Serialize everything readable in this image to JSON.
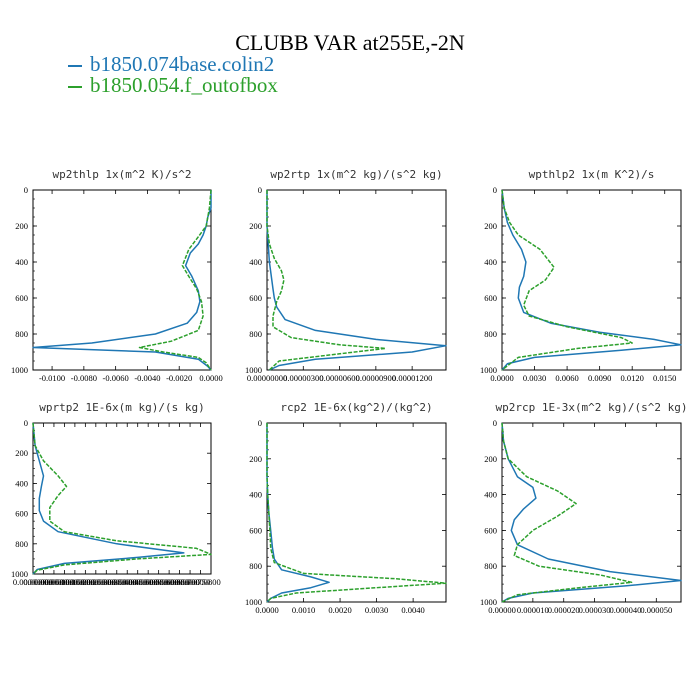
{
  "page": {
    "title": "CLUBB VAR at255E,-2N",
    "legend": [
      {
        "label": "b1850.074base.colin2",
        "color": "#1f77b4"
      },
      {
        "label": "b1850.054.f_outofbox",
        "color": "#2ca02c"
      }
    ]
  },
  "chart_data": [
    {
      "type": "line",
      "title": "wp2thlp  1x(m^2 K)/s^2",
      "xlim": [
        -0.0112,
        0.0
      ],
      "ylim": [
        1000,
        0
      ],
      "xticks": [
        -0.01,
        -0.008,
        -0.006,
        -0.004,
        -0.002,
        0.0
      ],
      "xtick_labels": [
        "-0.0100",
        "-0.0080",
        "-0.0060",
        "-0.0040",
        "-0.0020",
        "0.0000"
      ],
      "yticks": [
        0,
        200,
        400,
        600,
        800,
        1000
      ],
      "ytick_labels": [
        "0",
        "200",
        "400",
        "600",
        "800",
        "1000"
      ],
      "series": [
        {
          "name": "b1850.074base.colin2",
          "color": "#1f77b4",
          "dash": false,
          "x": [
            0.0,
            0.0,
            -0.0002,
            -0.0003,
            -0.0005,
            -0.0008,
            -0.0013,
            -0.0016,
            -0.0012,
            -0.0008,
            -0.0007,
            -0.0009,
            -0.0015,
            -0.0035,
            -0.0075,
            -0.0112,
            -0.0035,
            -0.0008,
            -0.0002,
            0.0
          ],
          "y": [
            0,
            100,
            150,
            200,
            250,
            300,
            350,
            420,
            480,
            560,
            620,
            680,
            740,
            800,
            850,
            875,
            900,
            940,
            980,
            1000
          ]
        },
        {
          "name": "b1850.054.f_outofbox",
          "color": "#2ca02c",
          "dash": true,
          "x": [
            0.0,
            -0.0001,
            -0.0002,
            -0.0003,
            -0.0008,
            -0.0014,
            -0.0018,
            -0.0014,
            -0.0009,
            -0.0006,
            -0.0005,
            -0.0008,
            -0.0025,
            -0.0045,
            -0.003,
            -0.0008,
            -0.0003,
            0.0
          ],
          "y": [
            0,
            100,
            150,
            200,
            260,
            330,
            420,
            480,
            550,
            620,
            700,
            780,
            840,
            875,
            900,
            930,
            960,
            1000
          ]
        }
      ]
    },
    {
      "type": "line",
      "title": "wp2rtp  1x(m^2 kg)/(s^2 kg)",
      "xlim": [
        0.0,
        1.48e-05
      ],
      "ylim": [
        1000,
        0
      ],
      "xticks": [
        0.0,
        3e-06,
        6e-06,
        9e-06,
        1.2e-05
      ],
      "xtick_labels": [
        "0.00000000",
        "0.00000300",
        "0.00000600",
        "0.00000900",
        "0.00001200"
      ],
      "yticks": [
        0,
        200,
        400,
        600,
        800,
        1000
      ],
      "ytick_labels": [
        "0",
        "200",
        "400",
        "600",
        "800",
        "1000"
      ],
      "series": [
        {
          "name": "b1850.074base.colin2",
          "color": "#1f77b4",
          "dash": false,
          "x": [
            0.0,
            0.0,
            1e-07,
            2e-07,
            3e-07,
            4e-07,
            5e-07,
            6e-07,
            8e-07,
            1.5e-06,
            4e-06,
            9e-06,
            1.48e-05,
            1.2e-05,
            4e-06,
            1e-06,
            2e-07
          ],
          "y": [
            0,
            200,
            300,
            400,
            450,
            500,
            550,
            600,
            650,
            720,
            780,
            830,
            865,
            900,
            940,
            975,
            1000
          ]
        },
        {
          "name": "b1850.054.f_outofbox",
          "color": "#2ca02c",
          "dash": true,
          "x": [
            0.0,
            0.0,
            2e-07,
            6e-07,
            1.2e-06,
            1.4e-06,
            1.2e-06,
            8e-07,
            5e-07,
            5e-07,
            2e-06,
            6e-06,
            9.8e-06,
            6e-06,
            1e-06,
            2e-07
          ],
          "y": [
            0,
            200,
            300,
            380,
            450,
            500,
            560,
            620,
            700,
            760,
            820,
            860,
            880,
            910,
            950,
            1000
          ]
        }
      ]
    },
    {
      "type": "line",
      "title": "wpthlp2  1x(m K^2)/s",
      "xlim": [
        0.0,
        0.0165
      ],
      "ylim": [
        1000,
        0
      ],
      "xticks": [
        0.0,
        0.003,
        0.006,
        0.009,
        0.012,
        0.015
      ],
      "xtick_labels": [
        "0.0000",
        "0.0030",
        "0.0060",
        "0.0090",
        "0.0120",
        "0.0150"
      ],
      "yticks": [
        0,
        200,
        400,
        600,
        800,
        1000
      ],
      "ytick_labels": [
        "0",
        "200",
        "400",
        "600",
        "800",
        "1000"
      ],
      "series": [
        {
          "name": "b1850.074base.colin2",
          "color": "#1f77b4",
          "dash": false,
          "x": [
            0.0,
            0.0002,
            0.0005,
            0.001,
            0.0018,
            0.0022,
            0.002,
            0.0016,
            0.0015,
            0.002,
            0.0045,
            0.009,
            0.014,
            0.0165,
            0.011,
            0.003,
            0.0005,
            0.0
          ],
          "y": [
            0,
            100,
            180,
            250,
            330,
            400,
            480,
            540,
            600,
            680,
            740,
            790,
            830,
            860,
            890,
            930,
            965,
            1000
          ]
        },
        {
          "name": "b1850.054.f_outofbox",
          "color": "#2ca02c",
          "dash": true,
          "x": [
            0.0,
            0.0002,
            0.0007,
            0.0015,
            0.0035,
            0.0048,
            0.004,
            0.0025,
            0.002,
            0.0025,
            0.006,
            0.011,
            0.012,
            0.007,
            0.0015,
            0.0
          ],
          "y": [
            0,
            100,
            180,
            250,
            330,
            430,
            500,
            560,
            640,
            700,
            760,
            820,
            850,
            880,
            930,
            1000
          ]
        }
      ]
    },
    {
      "type": "line",
      "title": "wprtp2  1E-6x(m kg)/(s kg)",
      "xlim": [
        0.0,
        8.5e-06
      ],
      "ylim": [
        1000,
        0
      ],
      "xticks": [
        0.0,
        5e-07,
        1e-06,
        1.5e-06,
        2e-06,
        2.5e-06,
        3e-06,
        3.5e-06,
        4e-06,
        4.5e-06,
        5e-06,
        5.5e-06,
        6e-06,
        6.5e-06,
        7e-06,
        7.5e-06,
        8e-06
      ],
      "xtick_labels": [
        "0.00000000",
        "0.00000050",
        "0.00000100",
        "0.00000150",
        "0.00000200",
        "0.00000250",
        "0.00000300",
        "0.00000350",
        "0.00000400",
        "0.00000450",
        "0.00000500",
        "0.00000550",
        "0.00000600",
        "0.00000650",
        "0.00000700",
        "0.00000750",
        "0.00000800"
      ],
      "yticks": [
        0,
        200,
        400,
        600,
        800,
        1000
      ],
      "ytick_labels": [
        "0",
        "200",
        "400",
        "600",
        "800",
        "1000"
      ],
      "series": [
        {
          "name": "b1850.074base.colin2",
          "color": "#1f77b4",
          "dash": false,
          "x": [
            0.0,
            1e-07,
            3e-07,
            5e-07,
            4e-07,
            3e-07,
            3e-07,
            5e-07,
            1.2e-06,
            4e-06,
            7.2e-06,
            5e-06,
            1.5e-06,
            2e-07,
            0.0
          ],
          "y": [
            0,
            150,
            250,
            350,
            420,
            500,
            580,
            650,
            720,
            800,
            860,
            890,
            930,
            970,
            1000
          ]
        },
        {
          "name": "b1850.054.f_outofbox",
          "color": "#2ca02c",
          "dash": true,
          "x": [
            0.0,
            1e-07,
            5e-07,
            1.2e-06,
            1.6e-06,
            1.2e-06,
            8e-07,
            8e-07,
            1.5e-06,
            4e-06,
            7.8e-06,
            8.5e-06,
            5e-06,
            1.5e-06,
            2e-07,
            0.0
          ],
          "y": [
            0,
            150,
            250,
            350,
            420,
            480,
            560,
            650,
            720,
            780,
            830,
            870,
            900,
            940,
            975,
            1000
          ]
        }
      ]
    },
    {
      "type": "line",
      "title": "rcp2  1E-6x(kg^2)/(kg^2)",
      "xlim": [
        0.0,
        0.0049
      ],
      "ylim": [
        1000,
        0
      ],
      "xticks": [
        0.0,
        0.001,
        0.002,
        0.003,
        0.004
      ],
      "xtick_labels": [
        "0.0000",
        "0.0010",
        "0.0020",
        "0.0030",
        "0.0040"
      ],
      "yticks": [
        0,
        200,
        400,
        600,
        800,
        1000
      ],
      "ytick_labels": [
        "0",
        "200",
        "400",
        "600",
        "800",
        "1000"
      ],
      "series": [
        {
          "name": "b1850.074base.colin2",
          "color": "#1f77b4",
          "dash": false,
          "x": [
            0.0,
            0.0,
            2e-05,
            5e-05,
            0.0001,
            0.00015,
            0.0002,
            0.0004,
            0.0012,
            0.0017,
            0.0012,
            0.0004,
            0.0001,
            0.0
          ],
          "y": [
            0,
            300,
            400,
            500,
            600,
            700,
            760,
            820,
            860,
            890,
            920,
            950,
            980,
            1000
          ]
        },
        {
          "name": "b1850.054.f_outofbox",
          "color": "#2ca02c",
          "dash": true,
          "x": [
            0.0,
            0.0,
            2e-05,
            5e-05,
            8e-05,
            0.0001,
            0.0002,
            0.001,
            0.0035,
            0.0049,
            0.003,
            0.0008,
            0.0001,
            0.0
          ],
          "y": [
            0,
            300,
            400,
            500,
            600,
            700,
            780,
            840,
            870,
            895,
            920,
            950,
            980,
            1000
          ]
        }
      ]
    },
    {
      "type": "line",
      "title": "wp2rcp  1E-3x(m^2 kg)/(s^2 kg)",
      "xlim": [
        0.0,
        5.8e-05
      ],
      "ylim": [
        1000,
        0
      ],
      "xticks": [
        0.0,
        1e-05,
        2e-05,
        3e-05,
        4e-05,
        5e-05
      ],
      "xtick_labels": [
        "0.00000",
        "0.000010",
        "0.000020",
        "0.000030",
        "0.000040",
        "0.000050"
      ],
      "yticks": [
        0,
        200,
        400,
        600,
        800,
        1000
      ],
      "ytick_labels": [
        "0",
        "200",
        "400",
        "600",
        "800",
        "1000"
      ],
      "series": [
        {
          "name": "b1850.074base.colin2",
          "color": "#1f77b4",
          "dash": false,
          "x": [
            0.0,
            5e-07,
            2e-06,
            5e-06,
            1e-05,
            1.1e-05,
            7e-06,
            4e-06,
            3e-06,
            5e-06,
            1.5e-05,
            3.5e-05,
            5.8e-05,
            4e-05,
            1e-05,
            2e-06,
            0.0
          ],
          "y": [
            0,
            100,
            200,
            300,
            360,
            420,
            480,
            540,
            600,
            680,
            760,
            830,
            880,
            910,
            950,
            980,
            1000
          ]
        },
        {
          "name": "b1850.054.f_outofbox",
          "color": "#2ca02c",
          "dash": true,
          "x": [
            0.0,
            5e-07,
            2e-06,
            8e-06,
            1.8e-05,
            2.4e-05,
            1.8e-05,
            1e-05,
            5e-06,
            4e-06,
            1.2e-05,
            3.2e-05,
            4.2e-05,
            2.5e-05,
            5e-06,
            0.0
          ],
          "y": [
            0,
            100,
            200,
            300,
            380,
            450,
            520,
            600,
            680,
            740,
            800,
            850,
            890,
            920,
            960,
            1000
          ]
        }
      ]
    }
  ]
}
